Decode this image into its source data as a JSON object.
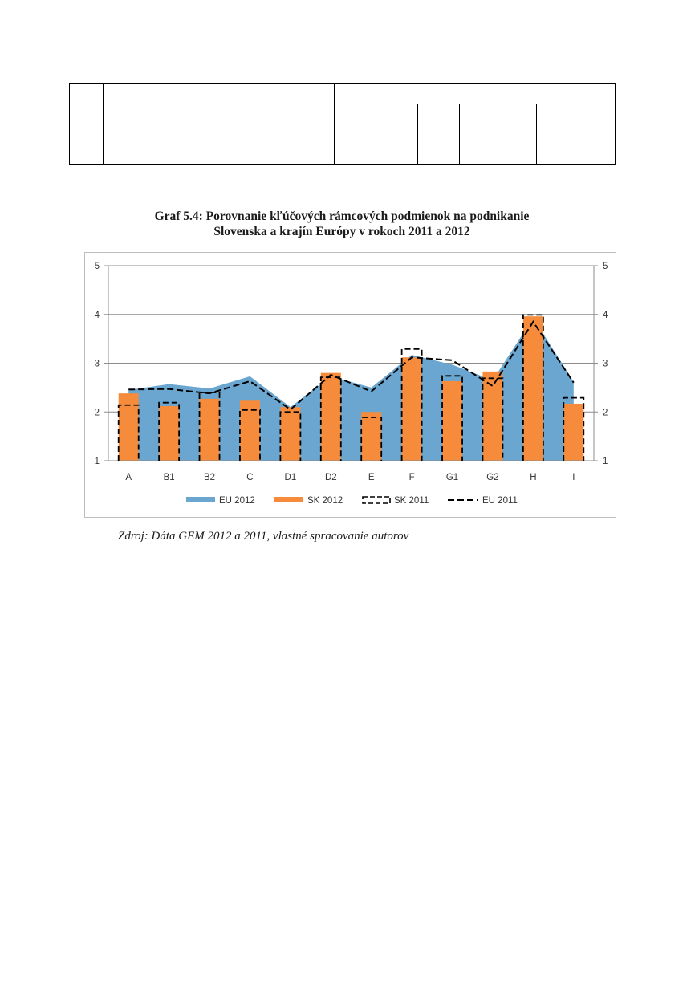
{
  "caption": {
    "line1": "Graf 5.4: Porovnanie kľúčových rámcových podmienok na podnikanie",
    "line2": "Slovenska a krajín Európy v rokoch 2011 a 2012"
  },
  "source": "Zdroj: Dáta GEM 2012 a 2011, vlastné spracovanie autorov",
  "chart_data": {
    "type": "bar",
    "categories": [
      "A",
      "B1",
      "B2",
      "C",
      "D1",
      "D2",
      "E",
      "F",
      "G1",
      "G2",
      "H",
      "I"
    ],
    "series": [
      {
        "name": "EU 2012",
        "kind": "area",
        "color": "#6aa6cf",
        "values": [
          2.45,
          2.57,
          2.48,
          2.73,
          2.1,
          2.73,
          2.5,
          3.17,
          2.97,
          2.65,
          3.93,
          2.62
        ]
      },
      {
        "name": "SK 2012",
        "kind": "bar",
        "color": "#f58b3b",
        "values": [
          2.38,
          2.12,
          2.27,
          2.23,
          2.1,
          2.8,
          2.0,
          3.12,
          2.63,
          2.83,
          3.96,
          2.17
        ]
      },
      {
        "name": "SK 2011",
        "kind": "bar-outline-dashed",
        "color": "#000000",
        "values": [
          2.14,
          2.19,
          2.4,
          2.04,
          2.0,
          2.71,
          1.89,
          3.29,
          2.74,
          2.69,
          3.99,
          2.29
        ]
      },
      {
        "name": "EU 2011",
        "kind": "line-dashed",
        "color": "#000000",
        "values": [
          2.46,
          2.47,
          2.38,
          2.63,
          2.05,
          2.76,
          2.42,
          3.12,
          3.06,
          2.53,
          3.85,
          2.6
        ]
      }
    ],
    "yticks": [
      1,
      2,
      3,
      4,
      5
    ],
    "ylim": [
      1,
      5
    ],
    "grid": true,
    "legend_position": "bottom"
  }
}
